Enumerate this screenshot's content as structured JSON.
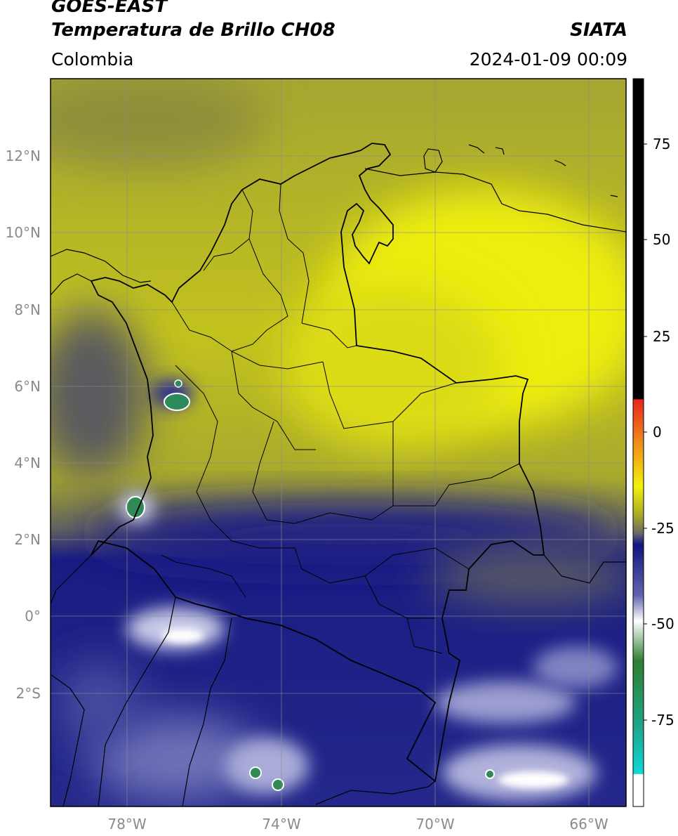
{
  "header": {
    "satellite": "GOES-EAST",
    "product": "Temperatura de Brillo CH08",
    "brand": "SIATA",
    "region": "Colombia",
    "timestamp": "2024-01-09 00:09"
  },
  "map": {
    "lat_labels": [
      "12°N",
      "10°N",
      "8°N",
      "6°N",
      "4°N",
      "2°N",
      "0°",
      "2°S"
    ],
    "lon_labels": [
      "78°W",
      "74°W",
      "70°W",
      "66°W"
    ],
    "extent_lon": [
      -80,
      -65
    ],
    "extent_lat": [
      -5,
      14
    ],
    "gridlines": true
  },
  "colorbar": {
    "ticks": [
      "75",
      "50",
      "25",
      "0",
      "-25",
      "-50",
      "-75"
    ],
    "tick_values": [
      75,
      50,
      25,
      0,
      -25,
      -50,
      -75
    ],
    "range": [
      -95,
      90
    ],
    "colors": {
      "warm_black": "#000000",
      "red": "#e8261c",
      "orange": "#f08c1c",
      "yellow": "#f2f20a",
      "olive": "#a8a82a",
      "gray": "#686868",
      "navy": "#111580",
      "lavender": "#a8aad4",
      "white": "#ffffff",
      "green": "#2f7e2f",
      "teal": "#1fa58a",
      "cyan": "#10d8d8"
    }
  }
}
